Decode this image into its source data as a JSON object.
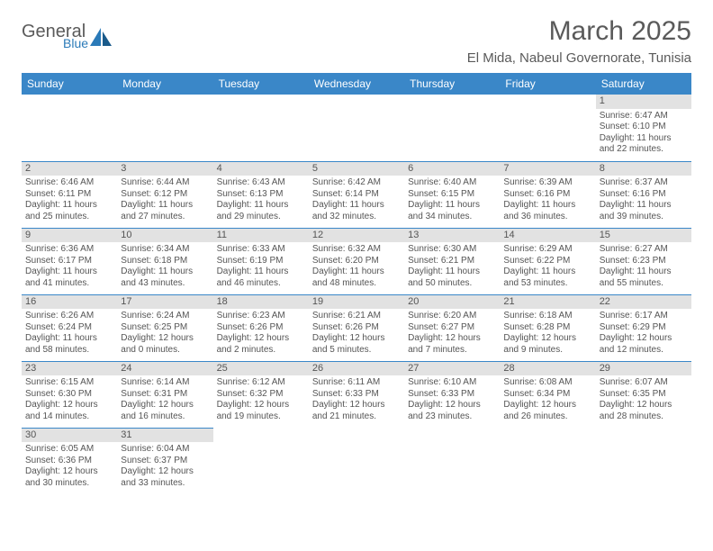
{
  "logo": {
    "text1": "General",
    "text2": "Blue"
  },
  "title": "March 2025",
  "subtitle": "El Mida, Nabeul Governorate, Tunisia",
  "dayHeaders": [
    "Sunday",
    "Monday",
    "Tuesday",
    "Wednesday",
    "Thursday",
    "Friday",
    "Saturday"
  ],
  "colors": {
    "headerBg": "#3a87c8",
    "headerText": "#ffffff",
    "cellBorder": "#3a87c8",
    "dayBg": "#e2e2e2",
    "text": "#555555",
    "logoBlue": "#2a7ab8"
  },
  "weeks": [
    [
      null,
      null,
      null,
      null,
      null,
      null,
      {
        "n": "1",
        "sr": "Sunrise: 6:47 AM",
        "ss": "Sunset: 6:10 PM",
        "dl": "Daylight: 11 hours and 22 minutes."
      }
    ],
    [
      {
        "n": "2",
        "sr": "Sunrise: 6:46 AM",
        "ss": "Sunset: 6:11 PM",
        "dl": "Daylight: 11 hours and 25 minutes."
      },
      {
        "n": "3",
        "sr": "Sunrise: 6:44 AM",
        "ss": "Sunset: 6:12 PM",
        "dl": "Daylight: 11 hours and 27 minutes."
      },
      {
        "n": "4",
        "sr": "Sunrise: 6:43 AM",
        "ss": "Sunset: 6:13 PM",
        "dl": "Daylight: 11 hours and 29 minutes."
      },
      {
        "n": "5",
        "sr": "Sunrise: 6:42 AM",
        "ss": "Sunset: 6:14 PM",
        "dl": "Daylight: 11 hours and 32 minutes."
      },
      {
        "n": "6",
        "sr": "Sunrise: 6:40 AM",
        "ss": "Sunset: 6:15 PM",
        "dl": "Daylight: 11 hours and 34 minutes."
      },
      {
        "n": "7",
        "sr": "Sunrise: 6:39 AM",
        "ss": "Sunset: 6:16 PM",
        "dl": "Daylight: 11 hours and 36 minutes."
      },
      {
        "n": "8",
        "sr": "Sunrise: 6:37 AM",
        "ss": "Sunset: 6:16 PM",
        "dl": "Daylight: 11 hours and 39 minutes."
      }
    ],
    [
      {
        "n": "9",
        "sr": "Sunrise: 6:36 AM",
        "ss": "Sunset: 6:17 PM",
        "dl": "Daylight: 11 hours and 41 minutes."
      },
      {
        "n": "10",
        "sr": "Sunrise: 6:34 AM",
        "ss": "Sunset: 6:18 PM",
        "dl": "Daylight: 11 hours and 43 minutes."
      },
      {
        "n": "11",
        "sr": "Sunrise: 6:33 AM",
        "ss": "Sunset: 6:19 PM",
        "dl": "Daylight: 11 hours and 46 minutes."
      },
      {
        "n": "12",
        "sr": "Sunrise: 6:32 AM",
        "ss": "Sunset: 6:20 PM",
        "dl": "Daylight: 11 hours and 48 minutes."
      },
      {
        "n": "13",
        "sr": "Sunrise: 6:30 AM",
        "ss": "Sunset: 6:21 PM",
        "dl": "Daylight: 11 hours and 50 minutes."
      },
      {
        "n": "14",
        "sr": "Sunrise: 6:29 AM",
        "ss": "Sunset: 6:22 PM",
        "dl": "Daylight: 11 hours and 53 minutes."
      },
      {
        "n": "15",
        "sr": "Sunrise: 6:27 AM",
        "ss": "Sunset: 6:23 PM",
        "dl": "Daylight: 11 hours and 55 minutes."
      }
    ],
    [
      {
        "n": "16",
        "sr": "Sunrise: 6:26 AM",
        "ss": "Sunset: 6:24 PM",
        "dl": "Daylight: 11 hours and 58 minutes."
      },
      {
        "n": "17",
        "sr": "Sunrise: 6:24 AM",
        "ss": "Sunset: 6:25 PM",
        "dl": "Daylight: 12 hours and 0 minutes."
      },
      {
        "n": "18",
        "sr": "Sunrise: 6:23 AM",
        "ss": "Sunset: 6:26 PM",
        "dl": "Daylight: 12 hours and 2 minutes."
      },
      {
        "n": "19",
        "sr": "Sunrise: 6:21 AM",
        "ss": "Sunset: 6:26 PM",
        "dl": "Daylight: 12 hours and 5 minutes."
      },
      {
        "n": "20",
        "sr": "Sunrise: 6:20 AM",
        "ss": "Sunset: 6:27 PM",
        "dl": "Daylight: 12 hours and 7 minutes."
      },
      {
        "n": "21",
        "sr": "Sunrise: 6:18 AM",
        "ss": "Sunset: 6:28 PM",
        "dl": "Daylight: 12 hours and 9 minutes."
      },
      {
        "n": "22",
        "sr": "Sunrise: 6:17 AM",
        "ss": "Sunset: 6:29 PM",
        "dl": "Daylight: 12 hours and 12 minutes."
      }
    ],
    [
      {
        "n": "23",
        "sr": "Sunrise: 6:15 AM",
        "ss": "Sunset: 6:30 PM",
        "dl": "Daylight: 12 hours and 14 minutes."
      },
      {
        "n": "24",
        "sr": "Sunrise: 6:14 AM",
        "ss": "Sunset: 6:31 PM",
        "dl": "Daylight: 12 hours and 16 minutes."
      },
      {
        "n": "25",
        "sr": "Sunrise: 6:12 AM",
        "ss": "Sunset: 6:32 PM",
        "dl": "Daylight: 12 hours and 19 minutes."
      },
      {
        "n": "26",
        "sr": "Sunrise: 6:11 AM",
        "ss": "Sunset: 6:33 PM",
        "dl": "Daylight: 12 hours and 21 minutes."
      },
      {
        "n": "27",
        "sr": "Sunrise: 6:10 AM",
        "ss": "Sunset: 6:33 PM",
        "dl": "Daylight: 12 hours and 23 minutes."
      },
      {
        "n": "28",
        "sr": "Sunrise: 6:08 AM",
        "ss": "Sunset: 6:34 PM",
        "dl": "Daylight: 12 hours and 26 minutes."
      },
      {
        "n": "29",
        "sr": "Sunrise: 6:07 AM",
        "ss": "Sunset: 6:35 PM",
        "dl": "Daylight: 12 hours and 28 minutes."
      }
    ],
    [
      {
        "n": "30",
        "sr": "Sunrise: 6:05 AM",
        "ss": "Sunset: 6:36 PM",
        "dl": "Daylight: 12 hours and 30 minutes."
      },
      {
        "n": "31",
        "sr": "Sunrise: 6:04 AM",
        "ss": "Sunset: 6:37 PM",
        "dl": "Daylight: 12 hours and 33 minutes."
      },
      null,
      null,
      null,
      null,
      null
    ]
  ]
}
